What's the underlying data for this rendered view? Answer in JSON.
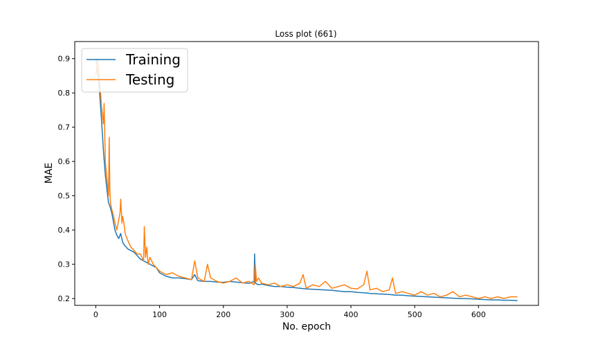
{
  "chart_data": {
    "type": "line",
    "title": "Loss plot (661)",
    "xlabel": "No. epoch",
    "ylabel": "MAE",
    "xlim": [
      -33,
      694
    ],
    "ylim": [
      0.18,
      0.95
    ],
    "xticks": [
      0,
      100,
      200,
      300,
      400,
      500,
      600
    ],
    "xtick_labels": [
      "0",
      "100",
      "200",
      "300",
      "400",
      "500",
      "600"
    ],
    "yticks": [
      0.2,
      0.3,
      0.4,
      0.5,
      0.6,
      0.7,
      0.8,
      0.9
    ],
    "ytick_labels": [
      "0.2",
      "0.3",
      "0.4",
      "0.5",
      "0.6",
      "0.7",
      "0.8",
      "0.9"
    ],
    "grid": false,
    "legend_position": "top-left",
    "series": [
      {
        "name": "Training",
        "color": "#1f77b4",
        "x": [
          0,
          3,
          6,
          9,
          12,
          15,
          18,
          20,
          22,
          25,
          28,
          30,
          33,
          36,
          39,
          42,
          45,
          48,
          50,
          55,
          60,
          65,
          70,
          75,
          80,
          85,
          90,
          95,
          100,
          110,
          120,
          130,
          140,
          150,
          155,
          160,
          170,
          180,
          190,
          200,
          210,
          220,
          230,
          240,
          248,
          249,
          250,
          255,
          260,
          270,
          280,
          290,
          300,
          310,
          320,
          330,
          340,
          350,
          360,
          370,
          380,
          390,
          400,
          410,
          420,
          430,
          440,
          450,
          460,
          470,
          480,
          490,
          500,
          510,
          520,
          530,
          540,
          550,
          560,
          570,
          580,
          590,
          600,
          610,
          620,
          630,
          640,
          650,
          661
        ],
        "y": [
          0.9,
          0.86,
          0.8,
          0.72,
          0.63,
          0.56,
          0.51,
          0.48,
          0.47,
          0.45,
          0.42,
          0.4,
          0.385,
          0.375,
          0.39,
          0.365,
          0.355,
          0.35,
          0.345,
          0.34,
          0.335,
          0.325,
          0.315,
          0.31,
          0.305,
          0.3,
          0.295,
          0.29,
          0.275,
          0.265,
          0.26,
          0.26,
          0.258,
          0.255,
          0.27,
          0.252,
          0.25,
          0.25,
          0.248,
          0.247,
          0.25,
          0.248,
          0.246,
          0.244,
          0.25,
          0.33,
          0.245,
          0.24,
          0.242,
          0.238,
          0.235,
          0.235,
          0.233,
          0.232,
          0.23,
          0.228,
          0.227,
          0.226,
          0.225,
          0.224,
          0.222,
          0.22,
          0.22,
          0.218,
          0.217,
          0.215,
          0.214,
          0.213,
          0.212,
          0.21,
          0.21,
          0.208,
          0.207,
          0.206,
          0.205,
          0.204,
          0.203,
          0.202,
          0.201,
          0.2,
          0.2,
          0.199,
          0.198,
          0.197,
          0.196,
          0.196,
          0.195,
          0.195,
          0.194
        ]
      },
      {
        "name": "Testing",
        "color": "#ff7f0e",
        "x": [
          0,
          3,
          6,
          9,
          12,
          13,
          15,
          18,
          20,
          21,
          22,
          23,
          24,
          25,
          28,
          30,
          33,
          36,
          38,
          39,
          41,
          42,
          44,
          46,
          48,
          50,
          55,
          60,
          65,
          70,
          75,
          76,
          78,
          80,
          82,
          85,
          90,
          95,
          100,
          110,
          120,
          130,
          140,
          150,
          155,
          160,
          170,
          175,
          180,
          190,
          200,
          210,
          220,
          230,
          240,
          248,
          250,
          252,
          255,
          260,
          270,
          280,
          290,
          300,
          310,
          320,
          325,
          330,
          340,
          350,
          360,
          370,
          380,
          390,
          400,
          410,
          420,
          425,
          430,
          440,
          450,
          460,
          465,
          470,
          480,
          490,
          500,
          510,
          520,
          530,
          540,
          550,
          560,
          570,
          580,
          590,
          600,
          610,
          620,
          630,
          640,
          650,
          661
        ],
        "y": [
          0.85,
          0.9,
          0.84,
          0.76,
          0.71,
          0.77,
          0.6,
          0.54,
          0.5,
          0.67,
          0.52,
          0.48,
          0.47,
          0.46,
          0.44,
          0.42,
          0.4,
          0.43,
          0.45,
          0.49,
          0.42,
          0.44,
          0.42,
          0.39,
          0.38,
          0.37,
          0.35,
          0.34,
          0.33,
          0.33,
          0.31,
          0.41,
          0.32,
          0.35,
          0.3,
          0.32,
          0.3,
          0.29,
          0.28,
          0.27,
          0.275,
          0.265,
          0.26,
          0.255,
          0.31,
          0.26,
          0.25,
          0.3,
          0.26,
          0.25,
          0.245,
          0.25,
          0.26,
          0.245,
          0.25,
          0.24,
          0.3,
          0.25,
          0.26,
          0.245,
          0.24,
          0.245,
          0.235,
          0.24,
          0.235,
          0.245,
          0.27,
          0.23,
          0.24,
          0.235,
          0.25,
          0.23,
          0.235,
          0.24,
          0.23,
          0.228,
          0.24,
          0.28,
          0.225,
          0.23,
          0.22,
          0.225,
          0.26,
          0.215,
          0.22,
          0.215,
          0.21,
          0.22,
          0.21,
          0.215,
          0.205,
          0.21,
          0.22,
          0.205,
          0.21,
          0.205,
          0.2,
          0.205,
          0.2,
          0.205,
          0.2,
          0.205,
          0.205
        ]
      }
    ]
  }
}
